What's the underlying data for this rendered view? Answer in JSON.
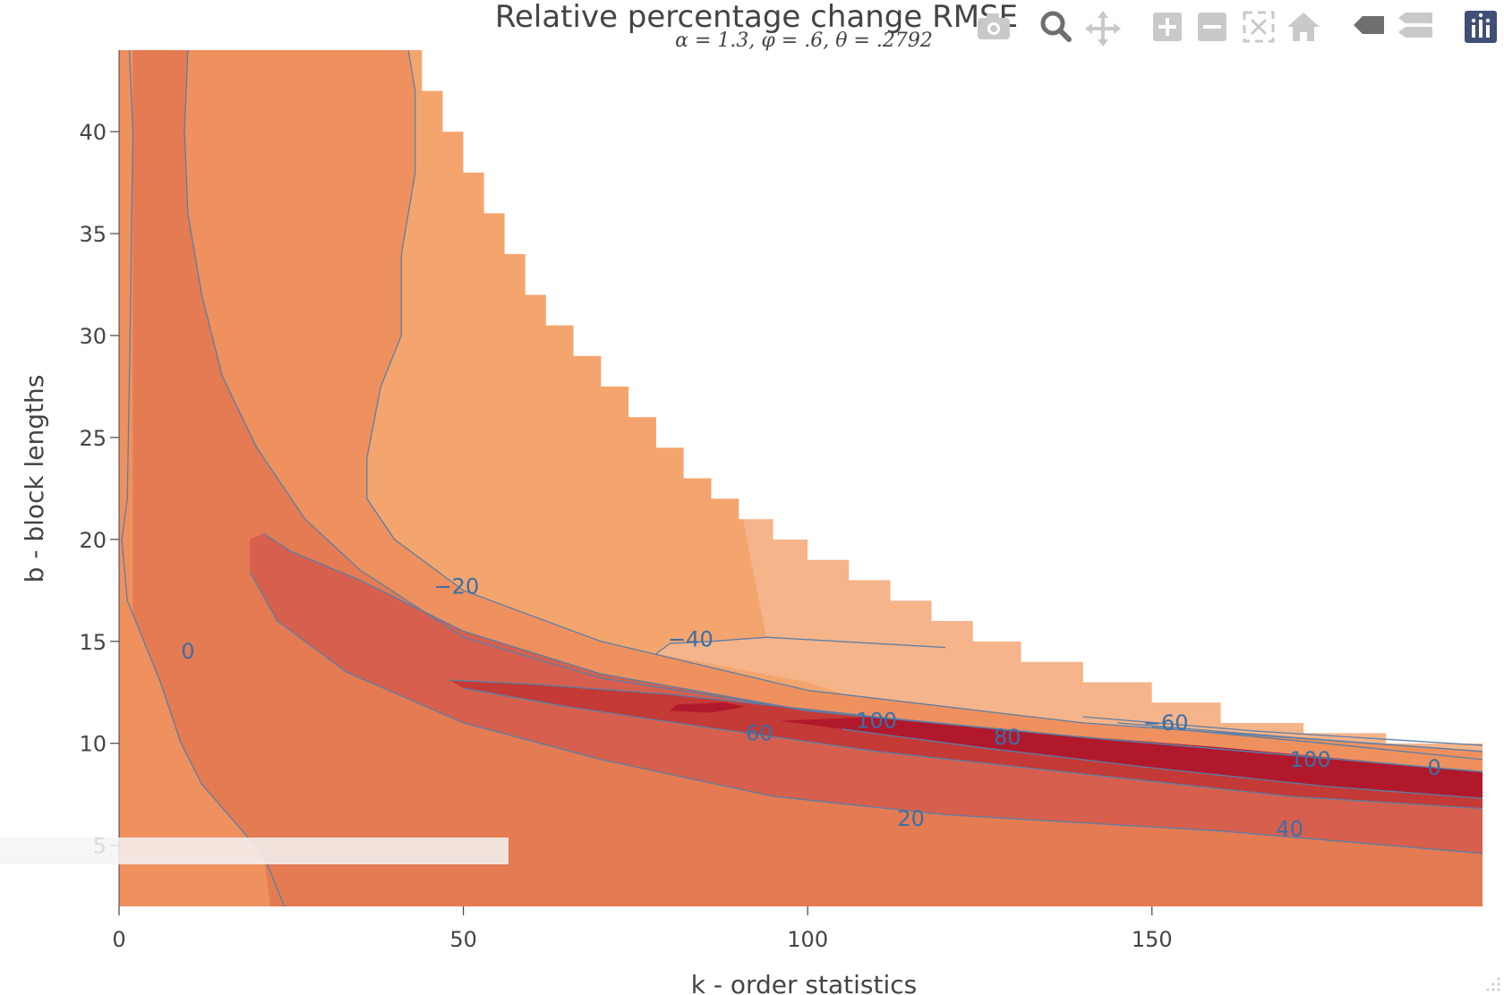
{
  "chart_data": {
    "type": "contour",
    "title": "Relative percentage change RMSE",
    "subtitle": "α = 1.3, φ = .6, θ = .2792",
    "xlabel": "k - order statistics",
    "ylabel": "b - block lengths",
    "xlim": [
      0,
      198
    ],
    "ylim": [
      2,
      44
    ],
    "x_ticks": [
      0,
      50,
      100,
      150
    ],
    "x_tick_labels": [
      "0",
      "50",
      "100",
      "150"
    ],
    "y_ticks": [
      5,
      10,
      15,
      20,
      25,
      30,
      35,
      40
    ],
    "y_tick_labels": [
      "5",
      "10",
      "15",
      "20",
      "25",
      "30",
      "35",
      "40"
    ],
    "grid": false,
    "legend": "none",
    "colorscale": "RdBu reversed (red = increase, blue = decrease)",
    "contour_levels": [
      -60,
      -40,
      -20,
      0,
      20,
      40,
      60,
      80,
      100
    ],
    "contour_labels": [
      {
        "text": "0",
        "x": 10,
        "y": 14.5
      },
      {
        "text": "−20",
        "x": 49,
        "y": 17.7
      },
      {
        "text": "−40",
        "x": 83,
        "y": 15.1
      },
      {
        "text": "60",
        "x": 93,
        "y": 10.5
      },
      {
        "text": "100",
        "x": 110,
        "y": 11.1
      },
      {
        "text": "80",
        "x": 129,
        "y": 10.3
      },
      {
        "text": "−60",
        "x": 152,
        "y": 11.0
      },
      {
        "text": "100",
        "x": 173,
        "y": 9.2
      },
      {
        "text": "0",
        "x": 191,
        "y": 8.8
      },
      {
        "text": "20",
        "x": 115,
        "y": 6.3
      },
      {
        "text": "40",
        "x": 170,
        "y": 5.8
      }
    ],
    "data_region_upper_boundary": {
      "x": [
        42,
        44,
        47,
        50,
        53,
        56,
        59,
        62,
        66,
        70,
        74,
        78,
        82,
        86,
        90,
        95,
        100,
        106,
        112,
        118,
        124,
        131,
        140,
        150,
        160,
        172,
        184,
        198
      ],
      "y": [
        44,
        42,
        40,
        38,
        36,
        34,
        32,
        30.5,
        29,
        27.5,
        26,
        24.5,
        23,
        22,
        21,
        20,
        19,
        18,
        17,
        16,
        15,
        14,
        13,
        12,
        11,
        10.5,
        10,
        10
      ]
    },
    "colors": {
      "deep_red": "#b2182b",
      "red": "#c43a36",
      "red_orange": "#d6604d",
      "orange": "#e47b52",
      "light_orange": "#ee915f",
      "peach": "#f4a56e",
      "pale_peach": "#f5b48a",
      "contour_line": "#5b7fa6"
    }
  },
  "modebar": {
    "buttons": [
      "camera-icon",
      "zoom-icon",
      "pan-icon",
      "zoom-in-icon",
      "zoom-out-icon",
      "autoscale-icon",
      "home-icon",
      "spike-lines-icon",
      "compare-hover-icon",
      "plotly-logo-icon"
    ]
  }
}
